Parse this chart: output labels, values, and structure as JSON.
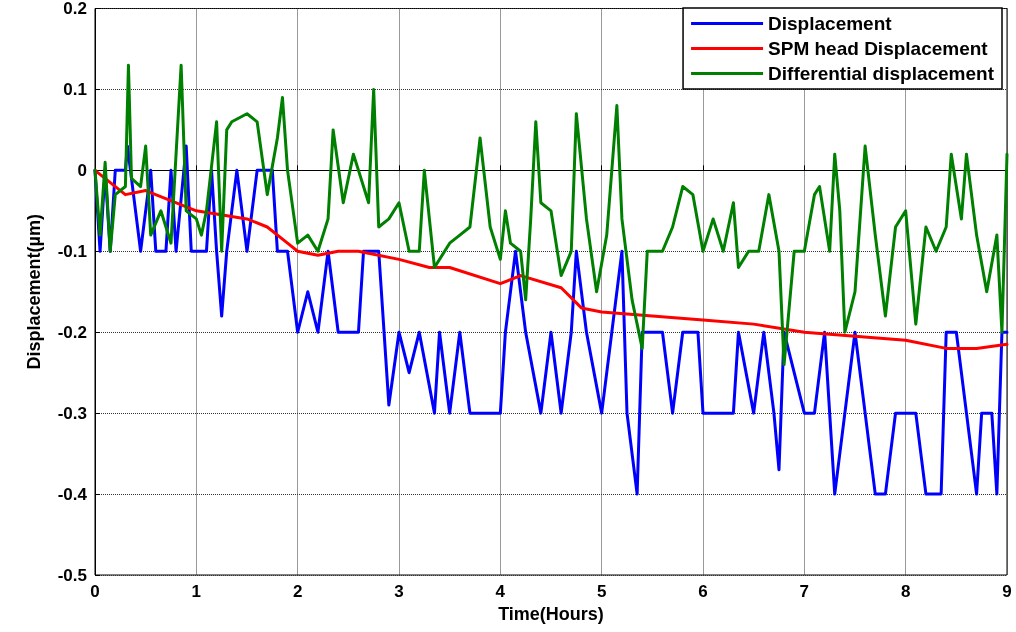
{
  "chart_data": {
    "type": "line",
    "xlabel": "Time(Hours)",
    "ylabel": "Displacement(µm)",
    "xlim": [
      0,
      9
    ],
    "xticks": [
      0,
      1,
      2,
      3,
      4,
      5,
      6,
      7,
      8,
      9
    ],
    "ylim": [
      -0.5,
      0.2
    ],
    "yticks": [
      -0.5,
      -0.4,
      -0.3,
      -0.2,
      -0.1,
      0,
      0.1,
      0.2
    ],
    "grid": true,
    "legend": "top right",
    "line_style": "solid",
    "marker": "none",
    "series": [
      {
        "name": "Displacement",
        "color": "#0000ff",
        "x": [
          0,
          0.05,
          0.1,
          0.15,
          0.2,
          0.3,
          0.32,
          0.35,
          0.45,
          0.55,
          0.6,
          0.7,
          0.75,
          0.8,
          0.9,
          0.95,
          1.0,
          1.1,
          1.15,
          1.2,
          1.25,
          1.3,
          1.4,
          1.5,
          1.6,
          1.75,
          1.8,
          1.9,
          2.0,
          2.1,
          2.2,
          2.3,
          2.4,
          2.6,
          2.65,
          2.8,
          2.9,
          3.0,
          3.1,
          3.2,
          3.35,
          3.4,
          3.5,
          3.6,
          3.7,
          4.0,
          4.05,
          4.15,
          4.25,
          4.4,
          4.5,
          4.6,
          4.7,
          4.75,
          4.85,
          5.0,
          5.1,
          5.2,
          5.25,
          5.35,
          5.4,
          5.6,
          5.7,
          5.8,
          5.95,
          6.0,
          6.3,
          6.35,
          6.5,
          6.6,
          6.7,
          6.75,
          6.8,
          7.0,
          7.1,
          7.2,
          7.3,
          7.4,
          7.5,
          7.6,
          7.7,
          7.8,
          7.9,
          8.1,
          8.2,
          8.35,
          8.4,
          8.5,
          8.6,
          8.7,
          8.75,
          8.85,
          8.9,
          8.95,
          9.0
        ],
        "values": [
          0,
          -0.1,
          0,
          -0.1,
          0,
          0,
          0.03,
          0,
          -0.1,
          0,
          -0.1,
          -0.1,
          0,
          -0.1,
          0.03,
          -0.1,
          -0.1,
          -0.1,
          0,
          -0.1,
          -0.18,
          -0.1,
          0,
          -0.1,
          0,
          0,
          -0.1,
          -0.1,
          -0.2,
          -0.15,
          -0.2,
          -0.1,
          -0.2,
          -0.2,
          -0.1,
          -0.1,
          -0.29,
          -0.2,
          -0.25,
          -0.2,
          -0.3,
          -0.2,
          -0.3,
          -0.2,
          -0.3,
          -0.3,
          -0.2,
          -0.1,
          -0.2,
          -0.3,
          -0.2,
          -0.3,
          -0.2,
          -0.1,
          -0.2,
          -0.3,
          -0.2,
          -0.1,
          -0.3,
          -0.4,
          -0.2,
          -0.2,
          -0.3,
          -0.2,
          -0.2,
          -0.3,
          -0.3,
          -0.2,
          -0.3,
          -0.2,
          -0.3,
          -0.37,
          -0.2,
          -0.3,
          -0.3,
          -0.2,
          -0.4,
          -0.3,
          -0.2,
          -0.3,
          -0.4,
          -0.4,
          -0.3,
          -0.3,
          -0.4,
          -0.4,
          -0.2,
          -0.2,
          -0.3,
          -0.4,
          -0.3,
          -0.3,
          -0.4,
          -0.2,
          -0.2
        ]
      },
      {
        "name": "SPM head Displacement",
        "color": "#ff0000",
        "x": [
          0,
          0.3,
          0.5,
          1,
          1.5,
          1.7,
          1.9,
          2,
          2.2,
          2.4,
          2.6,
          3,
          3.3,
          3.5,
          4,
          4.2,
          4.6,
          4.8,
          5,
          5.5,
          6,
          6.5,
          7,
          7.5,
          8,
          8.4,
          8.7,
          9
        ],
        "values": [
          0,
          -0.03,
          -0.025,
          -0.05,
          -0.06,
          -0.07,
          -0.09,
          -0.1,
          -0.105,
          -0.1,
          -0.1,
          -0.11,
          -0.12,
          -0.12,
          -0.14,
          -0.13,
          -0.145,
          -0.17,
          -0.175,
          -0.18,
          -0.185,
          -0.19,
          -0.2,
          -0.205,
          -0.21,
          -0.22,
          -0.22,
          -0.215
        ]
      },
      {
        "name": "Differential displacement",
        "color": "#008000",
        "x": [
          0,
          0.05,
          0.1,
          0.15,
          0.2,
          0.3,
          0.33,
          0.36,
          0.45,
          0.5,
          0.55,
          0.65,
          0.75,
          0.85,
          0.9,
          1.0,
          1.05,
          1.1,
          1.2,
          1.25,
          1.3,
          1.35,
          1.5,
          1.6,
          1.7,
          1.8,
          1.85,
          1.9,
          2.0,
          2.1,
          2.2,
          2.3,
          2.35,
          2.45,
          2.55,
          2.7,
          2.75,
          2.8,
          2.9,
          3.0,
          3.1,
          3.2,
          3.25,
          3.35,
          3.5,
          3.6,
          3.7,
          3.8,
          3.9,
          4.0,
          4.05,
          4.1,
          4.2,
          4.25,
          4.3,
          4.35,
          4.4,
          4.5,
          4.6,
          4.7,
          4.75,
          4.85,
          4.95,
          5.05,
          5.15,
          5.2,
          5.3,
          5.4,
          5.45,
          5.6,
          5.7,
          5.8,
          5.9,
          6.0,
          6.1,
          6.2,
          6.3,
          6.35,
          6.45,
          6.55,
          6.65,
          6.75,
          6.8,
          6.9,
          7.0,
          7.1,
          7.15,
          7.25,
          7.3,
          7.35,
          7.4,
          7.5,
          7.6,
          7.7,
          7.8,
          7.9,
          8.0,
          8.1,
          8.2,
          8.3,
          8.4,
          8.45,
          8.55,
          8.6,
          8.7,
          8.8,
          8.9,
          8.95,
          9.0
        ],
        "values": [
          0,
          -0.08,
          0.01,
          -0.1,
          -0.03,
          -0.02,
          0.13,
          -0.01,
          -0.02,
          0.03,
          -0.08,
          -0.05,
          -0.09,
          0.13,
          -0.05,
          -0.06,
          -0.08,
          -0.05,
          0.06,
          -0.1,
          0.05,
          0.06,
          0.07,
          0.06,
          -0.03,
          0.04,
          0.09,
          0,
          -0.09,
          -0.08,
          -0.1,
          -0.06,
          0.05,
          -0.04,
          0.02,
          -0.04,
          0.1,
          -0.07,
          -0.06,
          -0.04,
          -0.1,
          -0.1,
          0,
          -0.12,
          -0.09,
          -0.08,
          -0.07,
          0.04,
          -0.07,
          -0.11,
          -0.05,
          -0.09,
          -0.1,
          -0.16,
          -0.06,
          0.06,
          -0.04,
          -0.05,
          -0.13,
          -0.1,
          0.07,
          -0.06,
          -0.15,
          -0.08,
          0.08,
          -0.06,
          -0.16,
          -0.22,
          -0.1,
          -0.1,
          -0.07,
          -0.02,
          -0.03,
          -0.1,
          -0.06,
          -0.1,
          -0.04,
          -0.12,
          -0.1,
          -0.1,
          -0.03,
          -0.1,
          -0.24,
          -0.1,
          -0.1,
          -0.03,
          -0.02,
          -0.1,
          0.02,
          -0.05,
          -0.2,
          -0.15,
          0.03,
          -0.08,
          -0.18,
          -0.07,
          -0.05,
          -0.19,
          -0.07,
          -0.1,
          -0.07,
          0.02,
          -0.06,
          0.02,
          -0.08,
          -0.15,
          -0.08,
          -0.2,
          0.02
        ]
      }
    ]
  }
}
